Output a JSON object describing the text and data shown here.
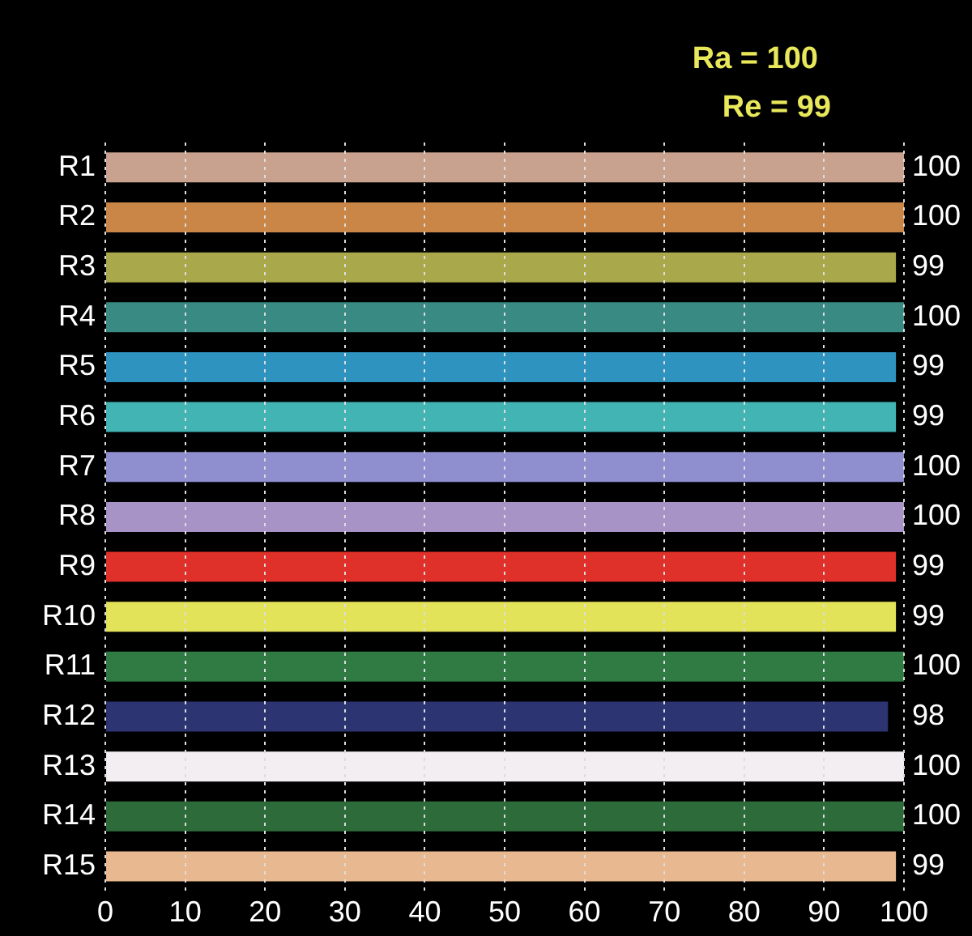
{
  "chart_data": {
    "type": "bar",
    "orientation": "horizontal",
    "categories": [
      "R1",
      "R2",
      "R3",
      "R4",
      "R5",
      "R6",
      "R7",
      "R8",
      "R9",
      "R10",
      "R11",
      "R12",
      "R13",
      "R14",
      "R15"
    ],
    "values": [
      100,
      100,
      99,
      100,
      99,
      99,
      100,
      100,
      99,
      99,
      100,
      98,
      100,
      100,
      99
    ],
    "colors": [
      "#c9a28f",
      "#c98646",
      "#a9a84a",
      "#3a8a84",
      "#2f93c0",
      "#43b4b4",
      "#8f8fd0",
      "#a893c6",
      "#e0302a",
      "#e3e35a",
      "#2f7b43",
      "#2c3472",
      "#f2eef2",
      "#2e6b3a",
      "#e8b890"
    ],
    "xlim": [
      0,
      100
    ],
    "xticks": [
      0,
      10,
      20,
      30,
      40,
      50,
      60,
      70,
      80,
      90,
      100
    ],
    "grid": "x",
    "data_labels": true,
    "legend": false,
    "annotations": [
      "Ra = 100",
      "Re = 99"
    ]
  }
}
